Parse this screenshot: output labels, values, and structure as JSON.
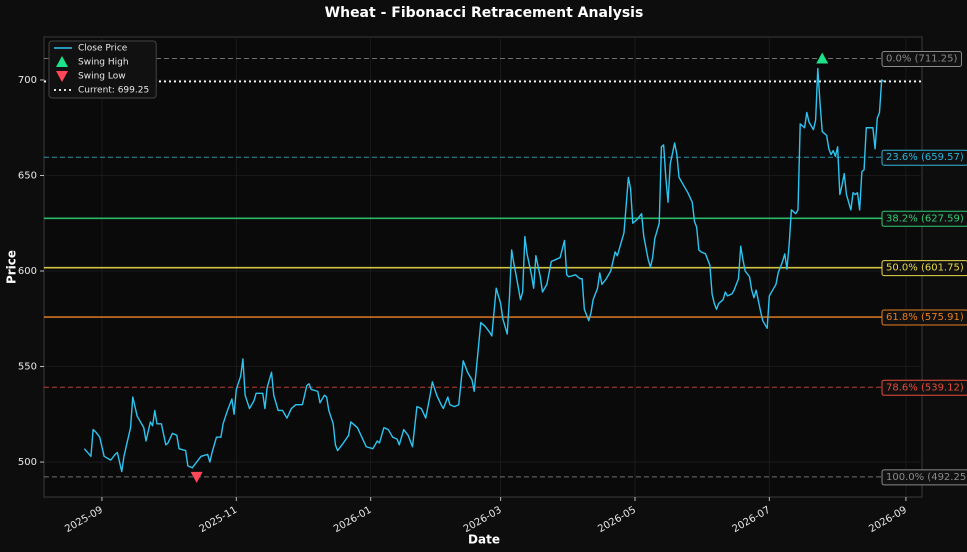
{
  "chart_data": {
    "type": "line",
    "title": "Wheat - Fibonacci Retracement Analysis",
    "x_label": "Date",
    "y_label": "Price",
    "x": [
      20324,
      20327,
      20328,
      20329,
      20331,
      20333,
      20336,
      20338,
      20339,
      20341,
      20342,
      20345,
      20346,
      20348,
      20351,
      20352,
      20354,
      20355,
      20356,
      20357,
      20359,
      20361,
      20362,
      20364,
      20366,
      20367,
      20370,
      20371,
      20373,
      20375,
      20377,
      20380,
      20381,
      20382,
      20384,
      20386,
      20387,
      20389,
      20391,
      20392,
      20393,
      20395,
      20396,
      20397,
      20399,
      20401,
      20402,
      20405,
      20406,
      20407,
      20409,
      20410,
      20412,
      20414,
      20416,
      20418,
      20420,
      20423,
      20425,
      20426,
      20427,
      20430,
      20431,
      20433,
      20434,
      20435,
      20437,
      20438,
      20439,
      20441,
      20444,
      20445,
      20448,
      20450,
      20452,
      20455,
      20457,
      20458,
      20460,
      20462,
      20464,
      20466,
      20467,
      20469,
      20471,
      20473,
      20475,
      20477,
      20479,
      20481,
      20482,
      20484,
      20486,
      20487,
      20489,
      20490,
      20492,
      20494,
      20496,
      20498,
      20500,
      20501,
      20504,
      20506,
      20508,
      20509,
      20511,
      20513,
      20514,
      20516,
      20517,
      20518,
      20519,
      20520,
      20522,
      20523,
      20524,
      20525,
      20527,
      20528,
      20529,
      20531,
      20532,
      20534,
      20536,
      20538,
      20540,
      20542,
      20543,
      20544,
      20547,
      20549,
      20550,
      20551,
      20553,
      20554,
      20555,
      20557,
      20558,
      20559,
      20561,
      20563,
      20564,
      20565,
      20566,
      20567,
      20569,
      20571,
      20572,
      20573,
      20575,
      20577,
      20578,
      20580,
      20581,
      20582,
      20583,
      20585,
      20586,
      20587,
      20588,
      20589,
      20590,
      20592,
      20593,
      20594,
      20596,
      20598,
      20600,
      20601,
      20602,
      20603,
      20604,
      20606,
      20608,
      20609,
      20610,
      20611,
      20612,
      20614,
      20615,
      20616,
      20618,
      20619,
      20621,
      20622,
      20623,
      20624,
      20626,
      20627,
      20628,
      20629,
      20631,
      20632,
      20634,
      20635,
      20637,
      20638,
      20639,
      20641,
      20642,
      20643,
      20644,
      20645,
      20647,
      20648,
      20649,
      20651,
      20652,
      20653,
      20655,
      20656,
      20657,
      20658,
      20659,
      20661,
      20662,
      20663,
      20664,
      20665,
      20666,
      20667,
      20668,
      20669,
      20670,
      20672,
      20673,
      20674,
      20675,
      20676,
      20677,
      20678,
      20679,
      20682,
      20683,
      20684,
      20685,
      20686,
      20687
    ],
    "series": [
      {
        "name": "Close Price",
        "color": "#2ec4f0",
        "values": [
          507,
          503,
          517,
          516,
          513,
          503,
          501,
          504,
          505,
          495,
          503,
          518,
          534,
          524,
          518,
          511,
          521,
          519,
          527,
          520,
          520,
          509,
          510,
          515,
          514,
          507,
          506,
          498,
          497,
          500,
          503,
          504,
          500,
          505,
          513,
          513,
          520,
          527,
          533,
          525,
          538,
          545,
          554,
          535,
          528,
          532,
          536,
          536,
          528,
          539,
          547,
          535,
          527,
          527,
          523,
          528,
          530,
          530,
          540,
          541,
          538,
          537,
          531,
          535,
          534,
          527,
          520,
          509,
          506,
          509,
          514,
          521,
          518,
          513,
          508,
          507,
          511,
          510,
          518,
          517,
          513,
          512,
          509,
          517,
          514,
          508,
          529,
          528,
          523,
          535,
          542,
          535,
          530,
          528,
          534,
          530,
          529,
          530,
          553,
          547,
          543,
          537,
          573,
          571,
          568,
          566,
          591,
          583,
          575,
          567,
          586,
          611,
          604,
          598,
          585,
          589,
          618,
          609,
          598,
          591,
          608,
          597,
          589,
          593,
          605,
          606,
          607,
          616,
          598,
          597,
          598,
          596,
          596,
          580,
          574,
          578,
          585,
          591,
          599,
          593,
          596,
          600,
          605,
          610,
          608,
          612,
          620,
          649,
          643,
          625,
          627,
          630,
          618,
          606,
          602,
          607,
          617,
          625,
          665,
          666,
          649,
          636,
          656,
          667,
          661,
          649,
          645,
          641,
          636,
          626,
          623,
          611,
          610,
          609,
          603,
          588,
          583,
          580,
          583,
          585,
          589,
          587,
          588,
          590,
          596,
          613,
          606,
          600,
          597,
          590,
          586,
          590,
          579,
          574,
          570,
          587,
          591,
          593,
          599,
          605,
          609,
          601,
          614,
          632,
          630,
          632,
          677,
          675,
          683,
          678,
          674,
          679,
          706,
          688,
          673,
          671,
          664,
          661,
          663,
          660,
          665,
          640,
          645,
          651,
          640,
          632,
          641,
          640,
          641,
          632,
          652,
          653,
          675,
          675,
          664,
          680,
          683,
          700,
          699.25
        ]
      }
    ],
    "swing_high": {
      "name": "Swing High",
      "x": 20659,
      "value": 711.25,
      "color": "#1de28a"
    },
    "swing_low": {
      "name": "Swing Low",
      "x": 20375,
      "value": 492.25,
      "color": "#ff4757"
    },
    "current": {
      "name": "Current: 699.25",
      "value": 699.25,
      "color": "#ffffff"
    },
    "fib_levels": [
      {
        "label": "0.0% (711.25)",
        "value": 711.25,
        "color": "#8a8a8a",
        "style": "dashed"
      },
      {
        "label": "23.6% (659.57)",
        "value": 659.57,
        "color": "#2eb3d6",
        "style": "dashed"
      },
      {
        "label": "38.2% (627.59)",
        "value": 627.59,
        "color": "#2ecc71",
        "style": "solid"
      },
      {
        "label": "50.0% (601.75)",
        "value": 601.75,
        "color": "#e8d84a",
        "style": "solid"
      },
      {
        "label": "61.8% (575.91)",
        "value": 575.91,
        "color": "#e67e22",
        "style": "solid"
      },
      {
        "label": "78.6% (539.12)",
        "value": 539.12,
        "color": "#e74c3c",
        "style": "dashed"
      },
      {
        "label": "100.0% (492.25)",
        "value": 492.25,
        "color": "#8a8a8a",
        "style": "dashed"
      }
    ],
    "xlim": [
      20305.7,
      20704.3
    ],
    "xticks": [
      {
        "value": 20332,
        "label": "2025-09"
      },
      {
        "value": 20393,
        "label": "2025-11"
      },
      {
        "value": 20454,
        "label": "2026-01"
      },
      {
        "value": 20513,
        "label": "2026-03"
      },
      {
        "value": 20574,
        "label": "2026-05"
      },
      {
        "value": 20635,
        "label": "2026-07"
      },
      {
        "value": 20697,
        "label": "2026-09"
      }
    ],
    "ylim": [
      481.7,
      722.5
    ],
    "yticks": [
      500,
      550,
      600,
      650,
      700
    ],
    "grid": true,
    "legend": "upper left"
  }
}
